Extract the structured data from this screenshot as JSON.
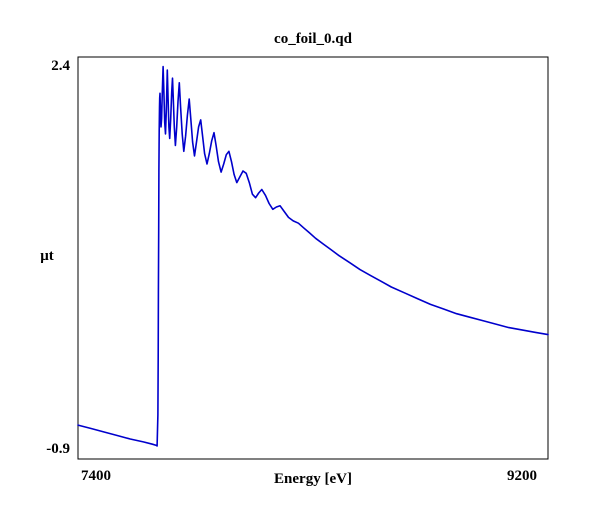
{
  "window": {
    "background": "#ffffff"
  },
  "chart_data": {
    "type": "line",
    "title": "co_foil_0.qd",
    "xlabel": "Energy [eV]",
    "ylabel": "μt",
    "x_ticks": [
      "7400",
      "9200"
    ],
    "y_ticks": [
      "2.4",
      "-0.9"
    ],
    "xlim": [
      7400,
      9200
    ],
    "ylim": [
      -0.9,
      2.4
    ],
    "grid": false,
    "legend": "none",
    "line_color": "#0000cc",
    "frame_color": "#000000",
    "description": "XAFS absorption spectrum of Co foil: flat slightly declining pre-edge near -0.8, sharp absorption edge near 7706 eV jumping to ~2.4, damped EXAFS oscillations out to ~8300 eV, then smooth monotonic decay to ~0.1 at 9200 eV",
    "series": [
      {
        "name": "co_foil_0.qd",
        "points": [
          [
            7400,
            -0.69
          ],
          [
            7450,
            -0.72
          ],
          [
            7500,
            -0.75
          ],
          [
            7550,
            -0.78
          ],
          [
            7600,
            -0.81
          ],
          [
            7650,
            -0.835
          ],
          [
            7685,
            -0.855
          ],
          [
            7700,
            -0.865
          ],
          [
            7703,
            -0.87
          ],
          [
            7706,
            -0.6
          ],
          [
            7707,
            -0.1
          ],
          [
            7708,
            0.45
          ],
          [
            7709,
            1.0
          ],
          [
            7710,
            1.5
          ],
          [
            7711,
            1.85
          ],
          [
            7712,
            2.05
          ],
          [
            7713,
            2.13
          ],
          [
            7714,
            2.17
          ],
          [
            7716,
            2.0
          ],
          [
            7718,
            1.88
          ],
          [
            7720,
            1.95
          ],
          [
            7723,
            2.18
          ],
          [
            7726,
            2.4
          ],
          [
            7729,
            2.18
          ],
          [
            7732,
            1.92
          ],
          [
            7735,
            1.82
          ],
          [
            7738,
            2.02
          ],
          [
            7742,
            2.37
          ],
          [
            7745,
            2.12
          ],
          [
            7748,
            1.88
          ],
          [
            7751,
            1.78
          ],
          [
            7755,
            1.95
          ],
          [
            7759,
            2.18
          ],
          [
            7762,
            2.3
          ],
          [
            7765,
            2.12
          ],
          [
            7769,
            1.88
          ],
          [
            7773,
            1.72
          ],
          [
            7778,
            1.88
          ],
          [
            7783,
            2.1
          ],
          [
            7788,
            2.26
          ],
          [
            7793,
            2.05
          ],
          [
            7799,
            1.82
          ],
          [
            7805,
            1.67
          ],
          [
            7812,
            1.8
          ],
          [
            7819,
            1.98
          ],
          [
            7826,
            2.12
          ],
          [
            7832,
            1.95
          ],
          [
            7839,
            1.75
          ],
          [
            7846,
            1.63
          ],
          [
            7854,
            1.75
          ],
          [
            7862,
            1.88
          ],
          [
            7870,
            1.94
          ],
          [
            7877,
            1.8
          ],
          [
            7885,
            1.65
          ],
          [
            7894,
            1.56
          ],
          [
            7903,
            1.65
          ],
          [
            7912,
            1.76
          ],
          [
            7921,
            1.83
          ],
          [
            7929,
            1.72
          ],
          [
            7938,
            1.58
          ],
          [
            7948,
            1.49
          ],
          [
            7958,
            1.56
          ],
          [
            7968,
            1.64
          ],
          [
            7978,
            1.67
          ],
          [
            7988,
            1.58
          ],
          [
            7998,
            1.47
          ],
          [
            8008,
            1.4
          ],
          [
            8020,
            1.45
          ],
          [
            8032,
            1.5
          ],
          [
            8044,
            1.48
          ],
          [
            8056,
            1.4
          ],
          [
            8068,
            1.3
          ],
          [
            8080,
            1.27
          ],
          [
            8092,
            1.31
          ],
          [
            8104,
            1.34
          ],
          [
            8118,
            1.29
          ],
          [
            8132,
            1.22
          ],
          [
            8146,
            1.17
          ],
          [
            8160,
            1.19
          ],
          [
            8174,
            1.2
          ],
          [
            8190,
            1.15
          ],
          [
            8206,
            1.1
          ],
          [
            8224,
            1.07
          ],
          [
            8244,
            1.05
          ],
          [
            8264,
            1.01
          ],
          [
            8285,
            0.97
          ],
          [
            8310,
            0.92
          ],
          [
            8340,
            0.87
          ],
          [
            8370,
            0.82
          ],
          [
            8400,
            0.77
          ],
          [
            8440,
            0.71
          ],
          [
            8480,
            0.65
          ],
          [
            8520,
            0.6
          ],
          [
            8560,
            0.55
          ],
          [
            8600,
            0.5
          ],
          [
            8650,
            0.45
          ],
          [
            8700,
            0.4
          ],
          [
            8750,
            0.35
          ],
          [
            8800,
            0.31
          ],
          [
            8850,
            0.27
          ],
          [
            8900,
            0.24
          ],
          [
            8950,
            0.21
          ],
          [
            9000,
            0.18
          ],
          [
            9050,
            0.15
          ],
          [
            9100,
            0.13
          ],
          [
            9150,
            0.11
          ],
          [
            9200,
            0.09
          ]
        ]
      }
    ]
  }
}
